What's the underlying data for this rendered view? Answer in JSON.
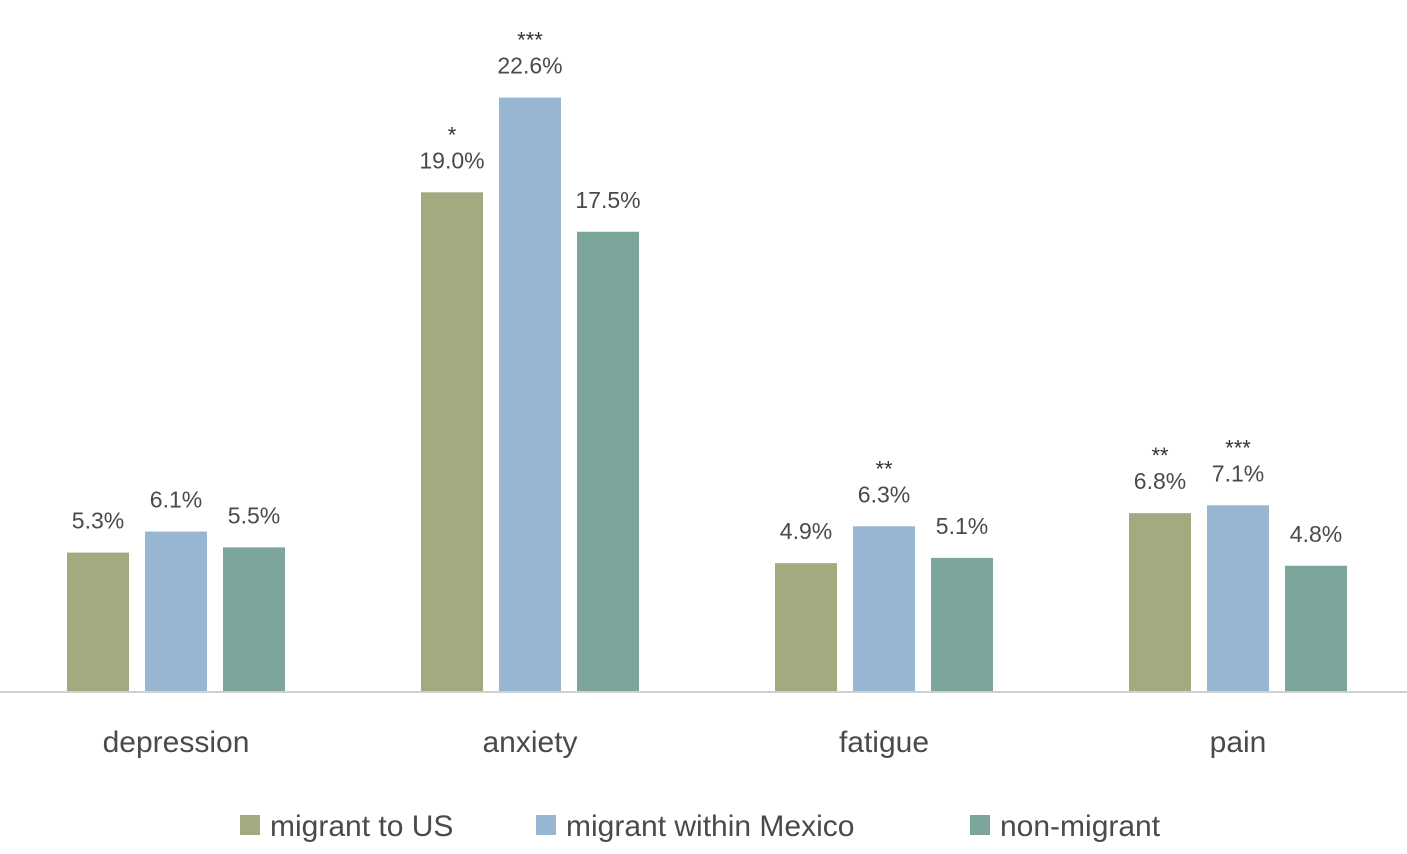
{
  "chart_data": {
    "type": "bar",
    "categories": [
      "depression",
      "anxiety",
      "fatigue",
      "pain"
    ],
    "series": [
      {
        "name": "migrant to US",
        "color": "#a4a97f",
        "values": [
          5.3,
          19.0,
          4.9,
          6.8
        ],
        "labels": [
          "5.3%",
          "19.0%",
          "4.9%",
          "6.8%"
        ],
        "significance": [
          "",
          "*",
          "",
          "**"
        ]
      },
      {
        "name": "migrant within Mexico",
        "color": "#97b6d2",
        "values": [
          6.1,
          22.6,
          6.3,
          7.1
        ],
        "labels": [
          "6.1%",
          "22.6%",
          "6.3%",
          "7.1%"
        ],
        "significance": [
          "",
          "***",
          "**",
          "***"
        ]
      },
      {
        "name": "non-migrant",
        "color": "#7ca69b",
        "values": [
          5.5,
          17.5,
          5.1,
          4.8
        ],
        "labels": [
          "5.5%",
          "17.5%",
          "5.1%",
          "4.8%"
        ],
        "significance": [
          "",
          "",
          "",
          ""
        ]
      }
    ],
    "title": "",
    "xlabel": "",
    "ylabel": "",
    "ylim": [
      0,
      25
    ],
    "grid": false,
    "legend_position": "bottom"
  }
}
